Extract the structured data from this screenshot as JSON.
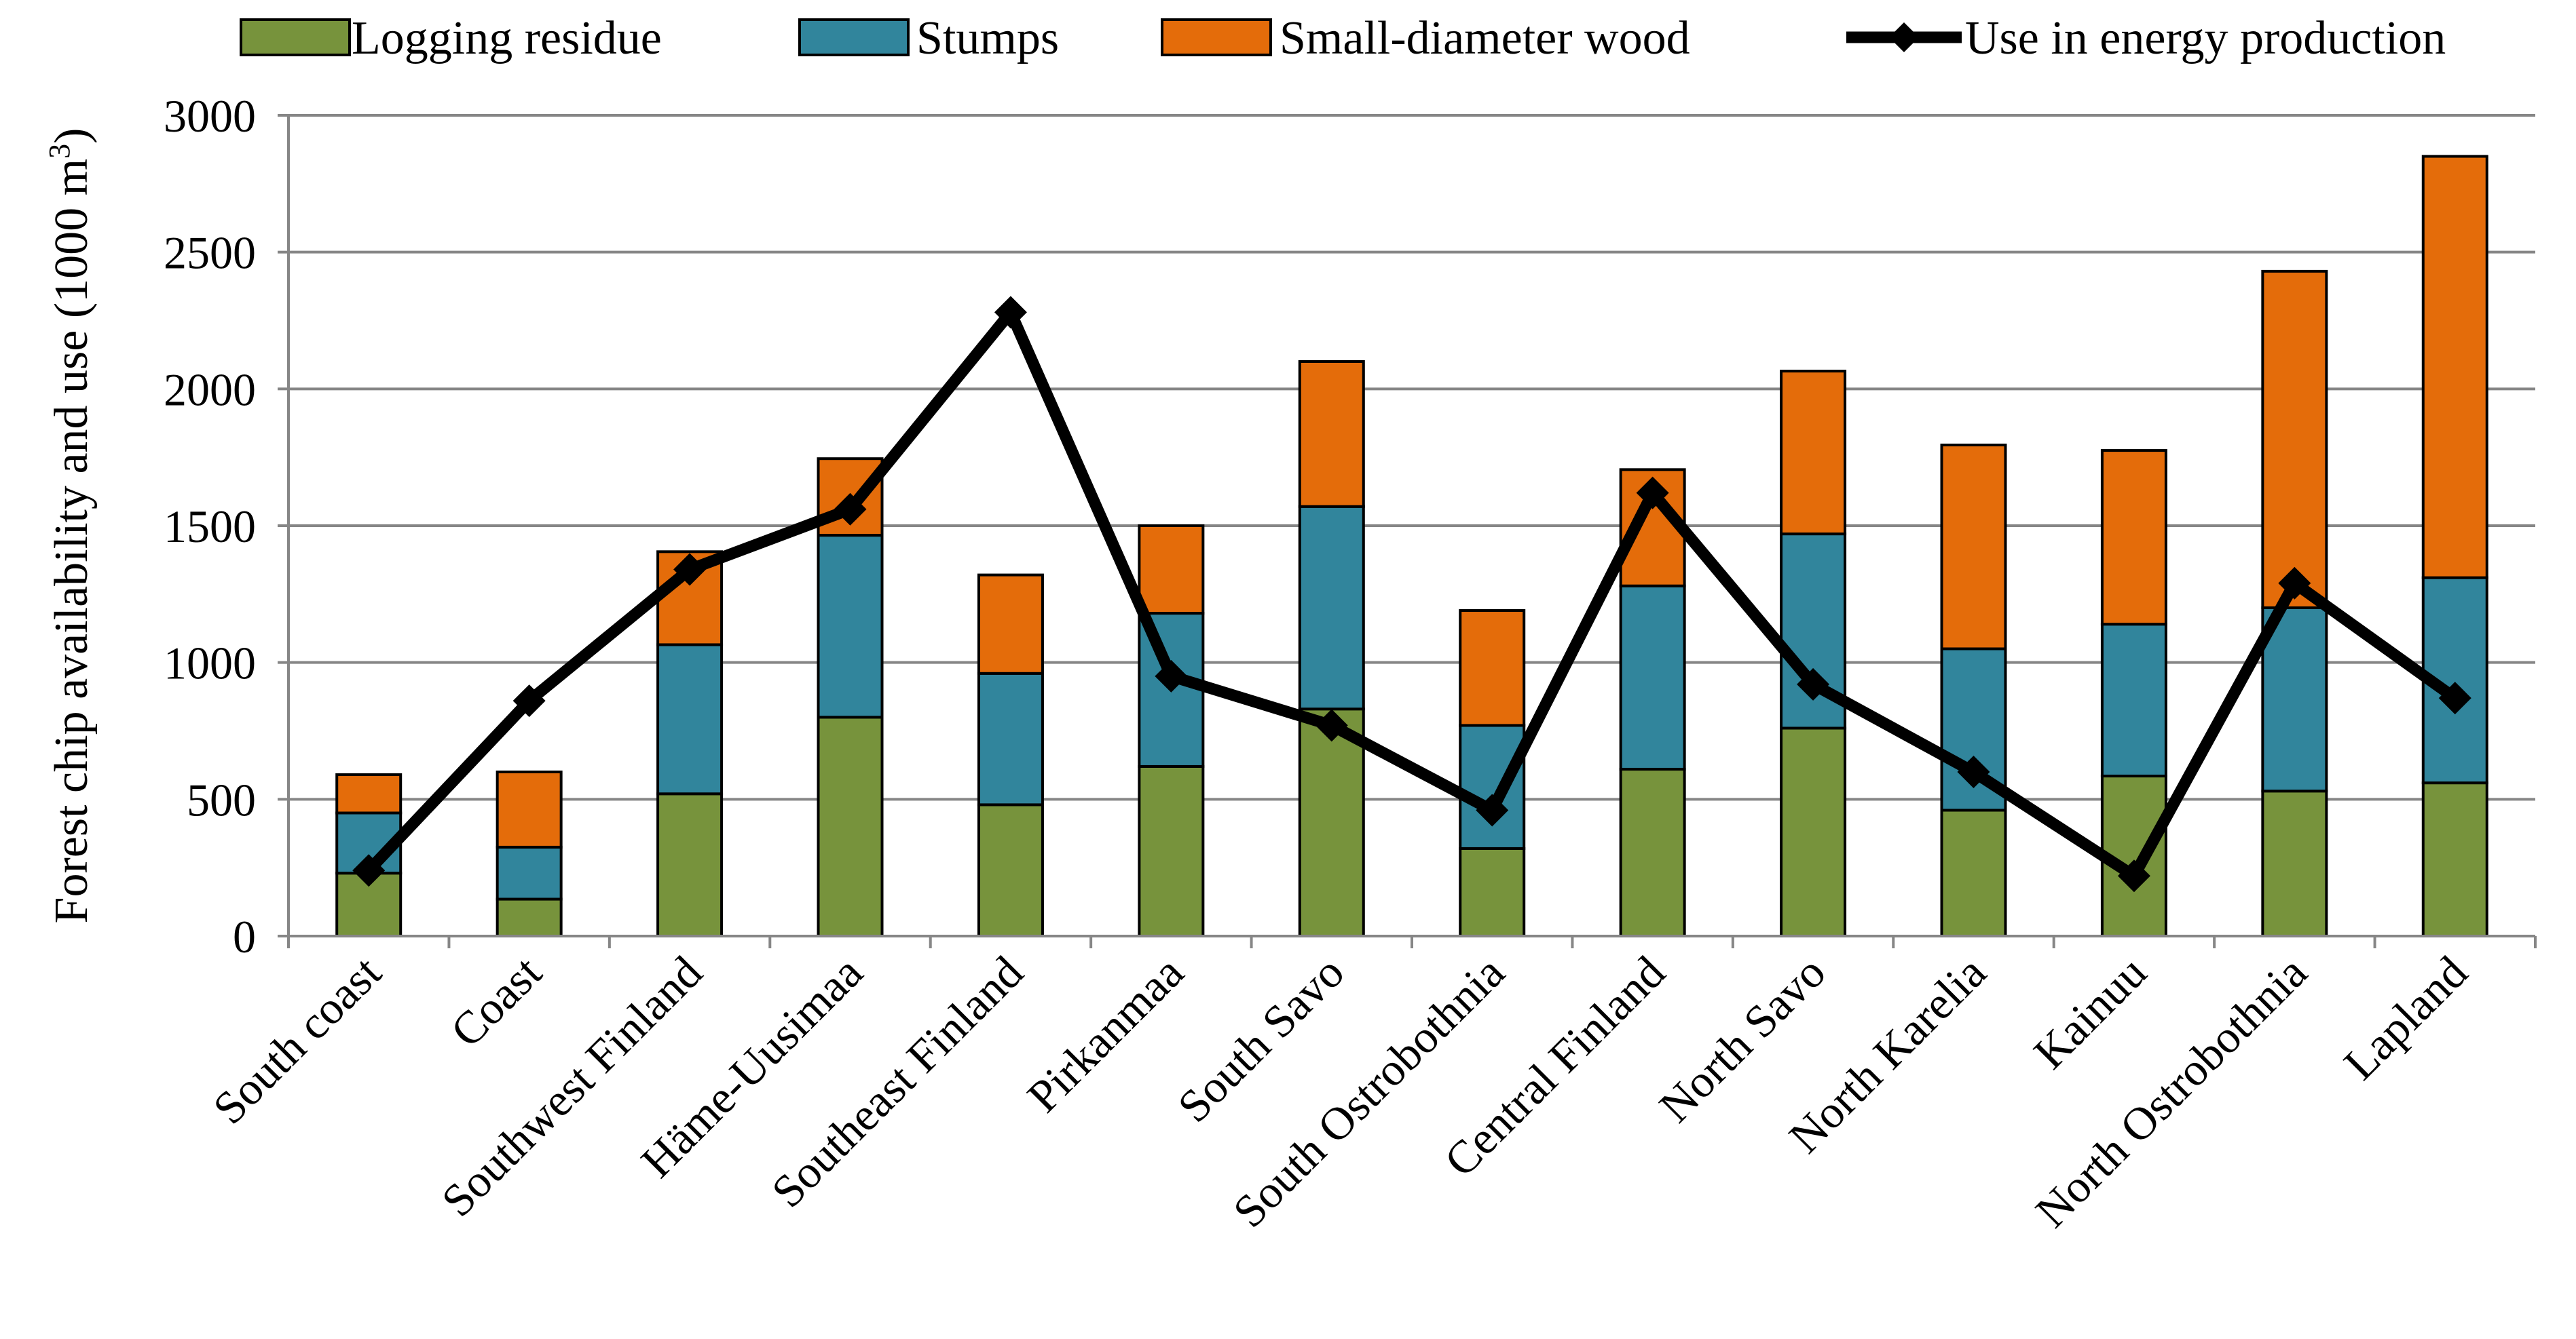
{
  "chart_data": {
    "type": "bar",
    "stacked": true,
    "title": "",
    "xlabel": "",
    "ylabel": "Forest chip availability and use (1000 m",
    "ylabel_superscript": "3",
    "ylabel_suffix": ")",
    "ylim": [
      0,
      3000
    ],
    "yticks": [
      0,
      500,
      1000,
      1500,
      2000,
      2500,
      3000
    ],
    "grid": true,
    "legend_position": "top",
    "categories": [
      "South coast",
      "Coast",
      "Southwest Finland",
      "Häme-Uusimaa",
      "Southeast Finland",
      "Pirkanmaa",
      "South Savo",
      "South Ostrobothnia",
      "Central Finland",
      "North Savo",
      "North Karelia",
      "Kainuu",
      "North Ostrobothnia",
      "Lapland"
    ],
    "series": [
      {
        "name": "Logging residue",
        "type": "bar",
        "color": "#77933c",
        "values": [
          230,
          135,
          520,
          800,
          480,
          620,
          830,
          320,
          610,
          760,
          460,
          585,
          530,
          560
        ]
      },
      {
        "name": "Stumps",
        "type": "bar",
        "color": "#31859c",
        "values": [
          220,
          190,
          545,
          665,
          480,
          560,
          740,
          450,
          670,
          710,
          590,
          555,
          670,
          750
        ]
      },
      {
        "name": "Small-diameter wood",
        "type": "bar",
        "color": "#e46c0a",
        "values": [
          140,
          275,
          340,
          280,
          360,
          320,
          530,
          420,
          425,
          595,
          745,
          635,
          1230,
          1540
        ]
      },
      {
        "name": "Use in energy production",
        "type": "line",
        "color": "#000000",
        "marker": "diamond",
        "values": [
          240,
          860,
          1340,
          1560,
          2280,
          950,
          770,
          460,
          1620,
          920,
          600,
          220,
          1290,
          870
        ]
      }
    ]
  }
}
